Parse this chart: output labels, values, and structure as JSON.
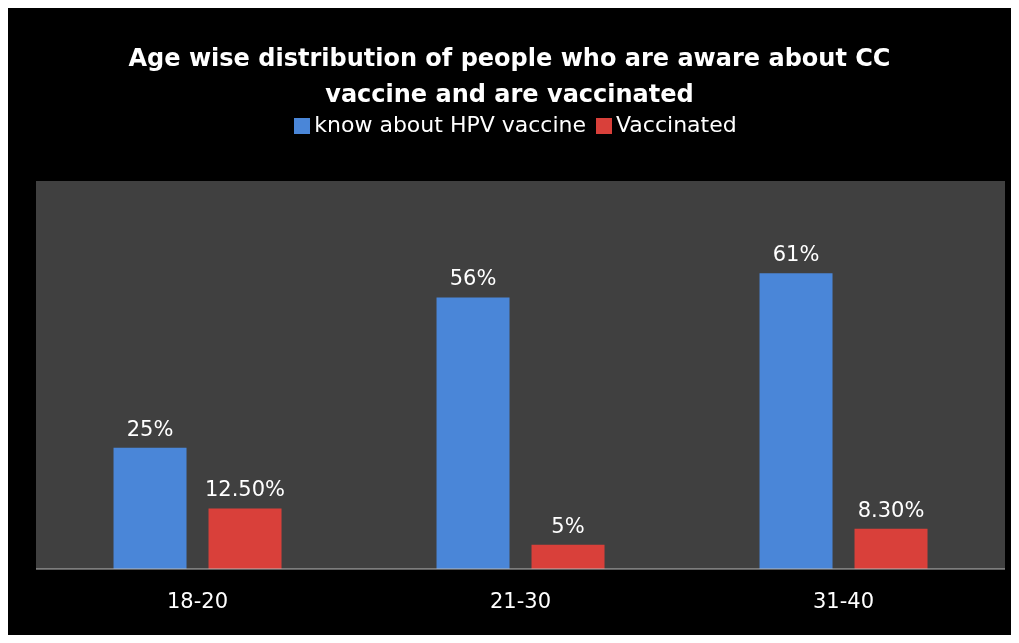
{
  "chart_data": {
    "type": "bar",
    "title": "Age wise distribution of people who are aware about CC vaccine and are vaccinated",
    "categories": [
      "18-20",
      "21-30",
      "31-40"
    ],
    "series": [
      {
        "name": "know about HPV vaccine",
        "color": "#4a86d8",
        "values": [
          25,
          56,
          61
        ],
        "value_labels": [
          "25%",
          "56%",
          "61%"
        ]
      },
      {
        "name": "Vaccinated",
        "color": "#d9403a",
        "values": [
          12.5,
          5,
          8.3
        ],
        "value_labels": [
          "12.50%",
          "5%",
          "8.30%"
        ]
      }
    ],
    "legend": "top",
    "grid": false
  }
}
